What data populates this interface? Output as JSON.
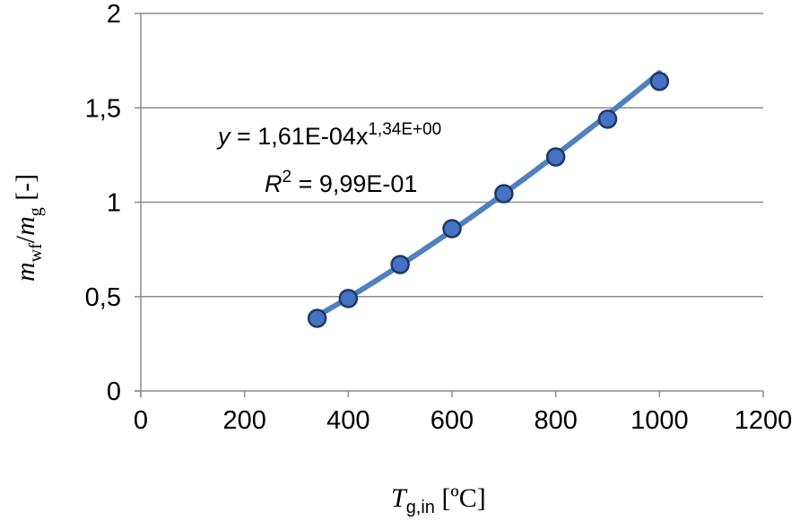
{
  "chart_data": {
    "type": "scatter",
    "series": [
      {
        "x": [
          340,
          400,
          500,
          600,
          700,
          800,
          900,
          1000
        ],
        "y": [
          0.385,
          0.49,
          0.67,
          0.86,
          1.045,
          1.24,
          1.44,
          1.64
        ],
        "color": "#4472c4",
        "marker_edge": "#1f3864"
      }
    ],
    "trendline": {
      "type": "power",
      "coef_a": 0.000161,
      "exponent": 1.34,
      "x_range": [
        340,
        1000
      ],
      "color": "#4f81bd"
    },
    "equation": {
      "y": "y",
      "eq_main": " = 1,61E-04x",
      "eq_sup": "1,34E+00",
      "r2_R": "R",
      "r2_sup": "2",
      "r2_value": " = 9,99E-01"
    },
    "xlim": [
      0,
      1200
    ],
    "ylim": [
      0,
      2
    ],
    "xticks": [
      0,
      200,
      400,
      600,
      800,
      1000,
      1200
    ],
    "xtick_labels": [
      "0",
      "200",
      "400",
      "600",
      "800",
      "1000",
      "1200"
    ],
    "yticks": [
      0,
      0.5,
      1,
      1.5,
      2
    ],
    "ytick_labels": [
      "0",
      "0,5",
      "1",
      "1,5",
      "2"
    ],
    "grid": "horizontal",
    "xlabel": {
      "main": "T",
      "sub": "g,in",
      "unit": " [ºC]"
    },
    "ylabel": {
      "m1": "m",
      "sub1": "wf",
      "slash": "/",
      "m2": "m",
      "sub2": "g",
      "unit": " [-]"
    }
  }
}
